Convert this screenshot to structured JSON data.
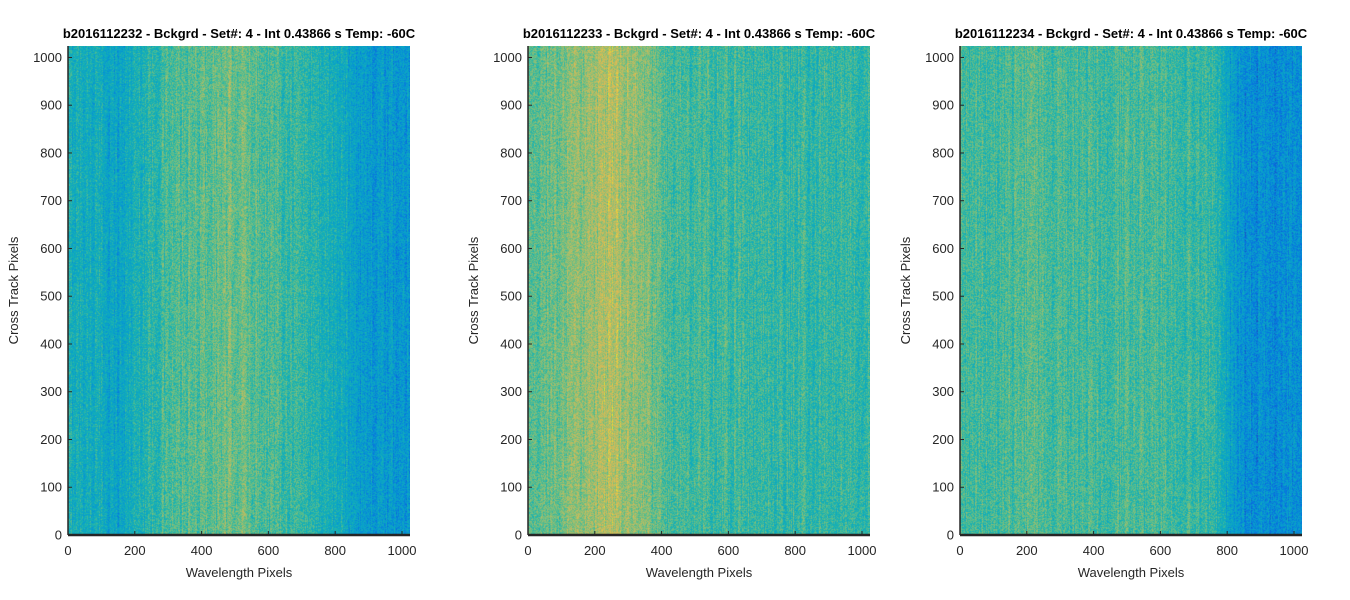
{
  "colors": {
    "background": "#ffffff",
    "axis": "#262626",
    "colormap_low": "#0072BD",
    "colormap_mid": "#24B3A7",
    "colormap_high": "#D9C24A"
  },
  "chart_data": [
    {
      "type": "heatmap",
      "title": "b2016112232 - Bckgrd - Set#: 4 - Int 0.43866 s Temp: -60C",
      "xlabel": "Wavelength Pixels",
      "ylabel": "Cross Track Pixels",
      "xlim": [
        0,
        1024
      ],
      "ylim": [
        0,
        1024
      ],
      "xticks": [
        0,
        200,
        400,
        600,
        800,
        1000
      ],
      "yticks": [
        0,
        100,
        200,
        300,
        400,
        500,
        600,
        700,
        800,
        900,
        1000
      ],
      "grid": false,
      "colormap": "parula",
      "column_profile": {
        "wavelength_pixel": [
          0,
          100,
          150,
          200,
          300,
          400,
          500,
          600,
          700,
          800,
          900,
          1000,
          1024
        ],
        "relative_level": [
          0.48,
          0.45,
          0.4,
          0.48,
          0.58,
          0.62,
          0.66,
          0.6,
          0.55,
          0.46,
          0.36,
          0.34,
          0.36
        ]
      }
    },
    {
      "type": "heatmap",
      "title": "b2016112233 - Bckgrd - Set#: 4 - Int 0.43866 s Temp: -60C",
      "xlabel": "Wavelength Pixels",
      "ylabel": "Cross Track Pixels",
      "xlim": [
        0,
        1024
      ],
      "ylim": [
        0,
        1024
      ],
      "xticks": [
        0,
        200,
        400,
        600,
        800,
        1000
      ],
      "yticks": [
        0,
        100,
        200,
        300,
        400,
        500,
        600,
        700,
        800,
        900,
        1000
      ],
      "grid": false,
      "colormap": "parula",
      "column_profile": {
        "wavelength_pixel": [
          0,
          100,
          200,
          250,
          300,
          350,
          400,
          500,
          600,
          700,
          800,
          900,
          1024
        ],
        "relative_level": [
          0.62,
          0.66,
          0.74,
          0.78,
          0.74,
          0.68,
          0.6,
          0.57,
          0.57,
          0.55,
          0.55,
          0.55,
          0.56
        ]
      }
    },
    {
      "type": "heatmap",
      "title": "b2016112234 - Bckgrd - Set#: 4 - Int 0.43866 s Temp: -60C",
      "xlabel": "Wavelength Pixels",
      "ylabel": "Cross Track Pixels",
      "xlim": [
        0,
        1024
      ],
      "ylim": [
        0,
        1024
      ],
      "xticks": [
        0,
        200,
        400,
        600,
        800,
        1000
      ],
      "yticks": [
        0,
        100,
        200,
        300,
        400,
        500,
        600,
        700,
        800,
        900,
        1000
      ],
      "grid": false,
      "colormap": "parula",
      "column_profile": {
        "wavelength_pixel": [
          0,
          100,
          200,
          300,
          400,
          500,
          600,
          700,
          760,
          800,
          850,
          900,
          1000,
          1024
        ],
        "relative_level": [
          0.58,
          0.57,
          0.6,
          0.59,
          0.58,
          0.58,
          0.58,
          0.56,
          0.54,
          0.4,
          0.32,
          0.3,
          0.3,
          0.3
        ]
      }
    }
  ]
}
